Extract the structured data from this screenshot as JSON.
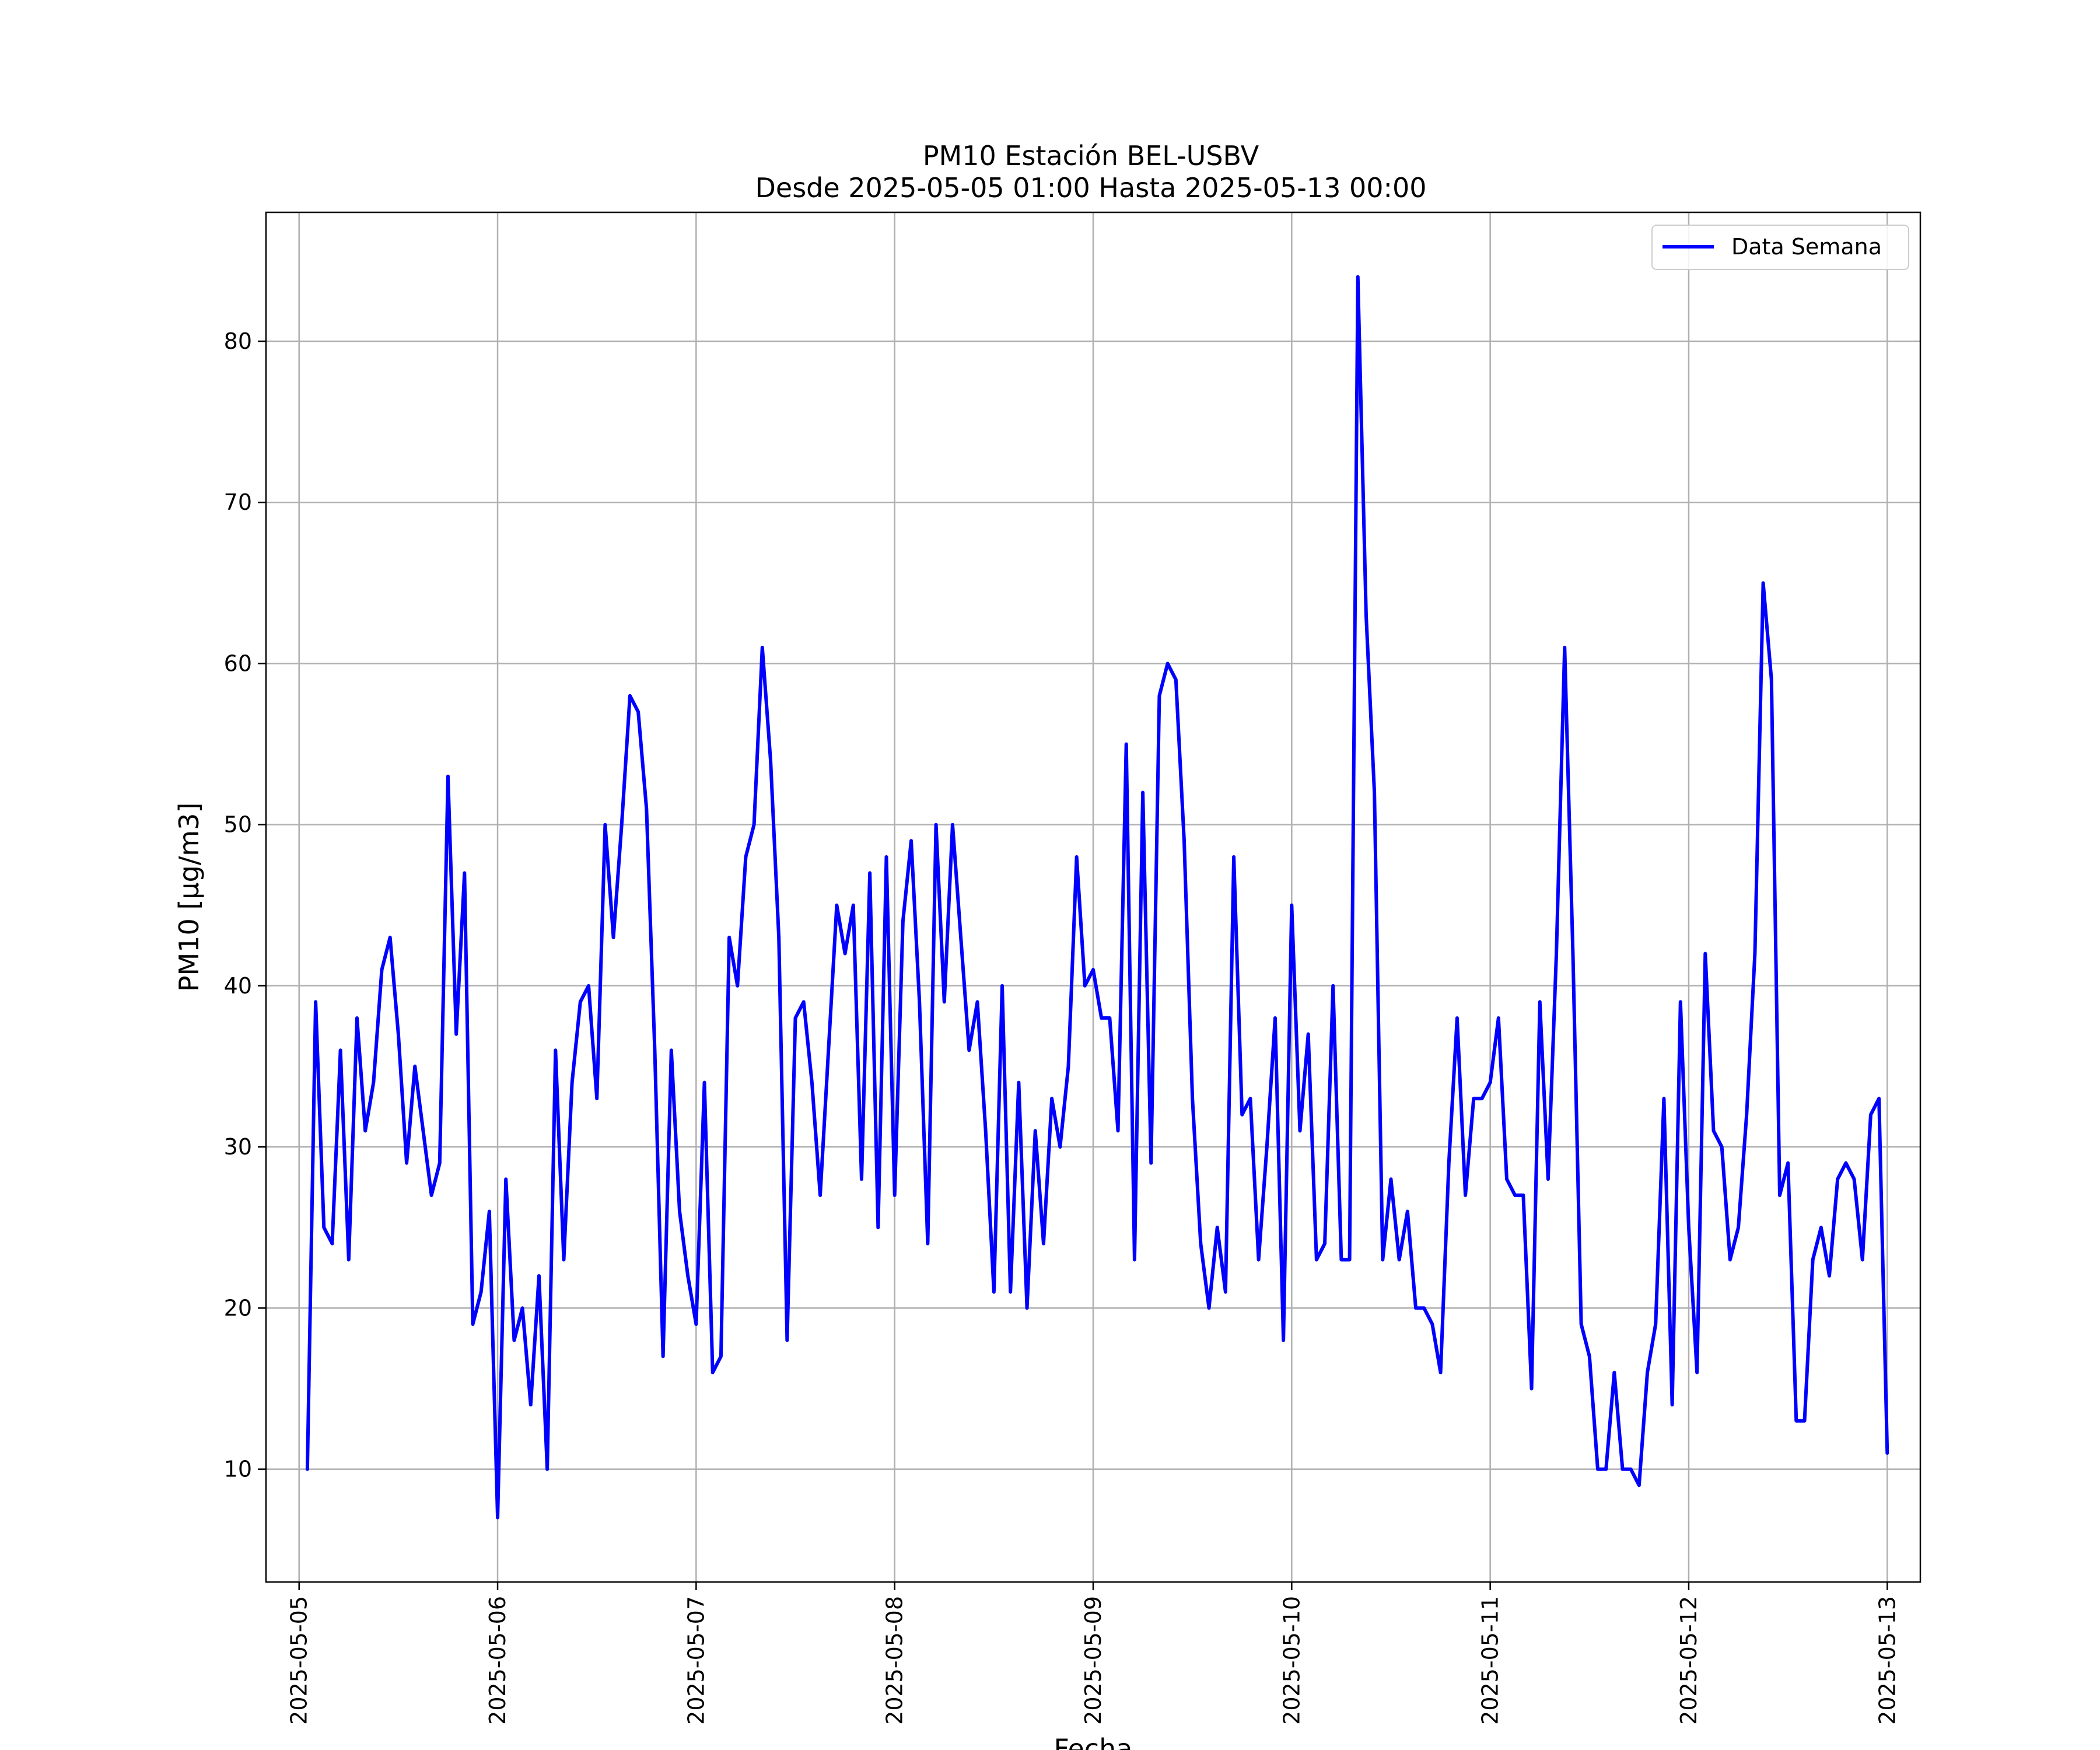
{
  "chart_data": {
    "type": "line",
    "title": "PM10 Estación BEL-USBV",
    "subtitle": "Desde 2025-05-05 01:00 Hasta 2025-05-13 00:00",
    "xlabel": "Fecha",
    "ylabel": "PM10 [μg/m3]",
    "x_range": [
      "2025-05-04 20:00",
      "2025-05-13 04:00"
    ],
    "ylim": [
      3,
      88
    ],
    "x_ticks": [
      "2025-05-05",
      "2025-05-06",
      "2025-05-07",
      "2025-05-08",
      "2025-05-09",
      "2025-05-10",
      "2025-05-11",
      "2025-05-12",
      "2025-05-13"
    ],
    "y_ticks": [
      10,
      20,
      30,
      40,
      50,
      60,
      70,
      80
    ],
    "grid": true,
    "legend_position": "top-right",
    "series": [
      {
        "name": "Data Semana",
        "color": "#0000ff",
        "start": "2025-05-05 01:00",
        "interval_hours": 1,
        "values": [
          10,
          39,
          25,
          24,
          36,
          23,
          38,
          31,
          34,
          41,
          43,
          37,
          29,
          35,
          31,
          27,
          29,
          53,
          37,
          47,
          19,
          21,
          26,
          7,
          28,
          18,
          20,
          14,
          22,
          10,
          36,
          23,
          34,
          39,
          40,
          33,
          50,
          43,
          50,
          58,
          57,
          51,
          36,
          17,
          36,
          26,
          22,
          19,
          34,
          16,
          17,
          43,
          40,
          48,
          50,
          61,
          54,
          43,
          18,
          38,
          39,
          34,
          27,
          36,
          45,
          42,
          45,
          28,
          47,
          25,
          48,
          27,
          44,
          49,
          39,
          24,
          50,
          39,
          50,
          43,
          36,
          39,
          31,
          21,
          40,
          21,
          34,
          20,
          31,
          24,
          33,
          30,
          35,
          48,
          40,
          41,
          38,
          38,
          31,
          55,
          23,
          52,
          29,
          58,
          60,
          59,
          49,
          33,
          24,
          20,
          25,
          21,
          48,
          32,
          33,
          23,
          30,
          38,
          18,
          45,
          31,
          37,
          23,
          24,
          40,
          23,
          23,
          84,
          63,
          52,
          23,
          28,
          23,
          26,
          20,
          20,
          19,
          16,
          29,
          38,
          27,
          33,
          33,
          34,
          38,
          28,
          27,
          27,
          15,
          39,
          28,
          42,
          61,
          42,
          19,
          17,
          10,
          10,
          16,
          10,
          10,
          9,
          16,
          19,
          33,
          14,
          39,
          25,
          16,
          42,
          31,
          30,
          23,
          25,
          32,
          42,
          65,
          59,
          27,
          29,
          13,
          13,
          23,
          25,
          22,
          28,
          29,
          28,
          23,
          32,
          33,
          11
        ]
      }
    ]
  }
}
